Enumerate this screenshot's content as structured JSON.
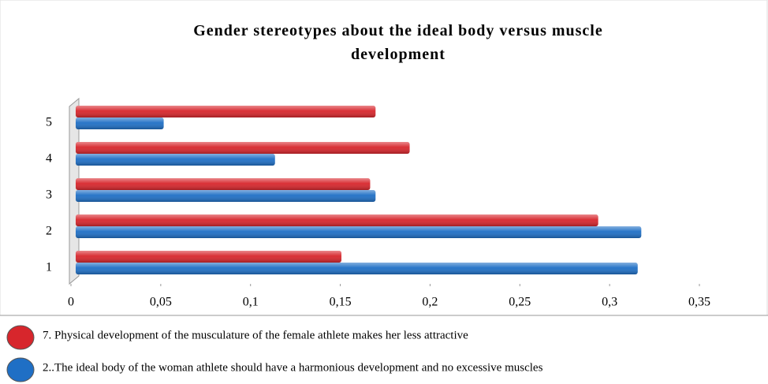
{
  "chart_data": {
    "type": "hbar",
    "title": "Gender stereotypes about the ideal body versus muscle development",
    "categories": [
      "1",
      "2",
      "3",
      "4",
      "5"
    ],
    "series": [
      {
        "name": "7. Physical development of the musculature of the female athlete makes her less attractive",
        "color": "#d7262c",
        "values": [
          0.148,
          0.291,
          0.164,
          0.186,
          0.167
        ]
      },
      {
        "name": "2..The ideal body of the woman athlete should have a harmonious development and no  excessive muscles",
        "color": "#1f6fc5",
        "values": [
          0.313,
          0.315,
          0.167,
          0.111,
          0.049
        ]
      }
    ],
    "xlim": [
      0,
      0.35
    ],
    "xticks": [
      0,
      {
        "value": 0.05,
        "label": "0,05"
      },
      {
        "value": 0.1,
        "label": "0,1"
      },
      {
        "value": 0.15,
        "label": "0,15"
      },
      {
        "value": 0.2,
        "label": "0,2"
      },
      {
        "value": 0.25,
        "label": "0,25"
      },
      {
        "value": 0.3,
        "label": "0,3"
      },
      {
        "value": 0.35,
        "label": "0,35"
      }
    ],
    "legend": "bottom"
  }
}
